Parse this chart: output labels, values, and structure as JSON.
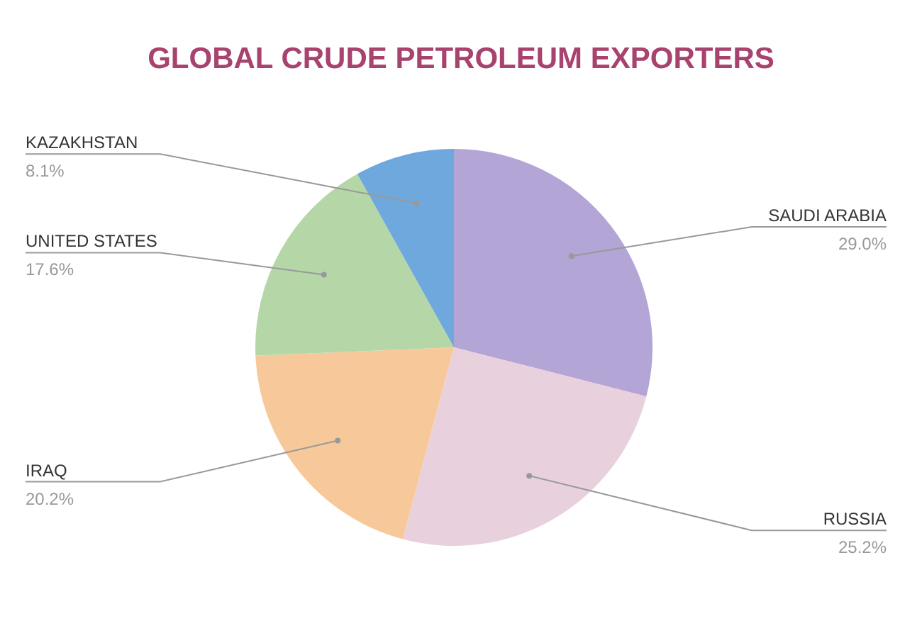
{
  "chart_data": {
    "type": "pie",
    "title": "GLOBAL CRUDE PETROLEUM EXPORTERS",
    "categories": [
      "SAUDI ARABIA",
      "RUSSIA",
      "IRAQ",
      "UNITED STATES",
      "KAZAKHSTAN"
    ],
    "values": [
      29.0,
      25.2,
      20.2,
      17.6,
      8.1
    ],
    "value_labels": [
      "29.0%",
      "25.2%",
      "20.2%",
      "17.6%",
      "8.1%"
    ],
    "colors": [
      "#b3a5d6",
      "#e8d0dc",
      "#f7c99a",
      "#b5d7a8",
      "#6fa8dc"
    ]
  }
}
